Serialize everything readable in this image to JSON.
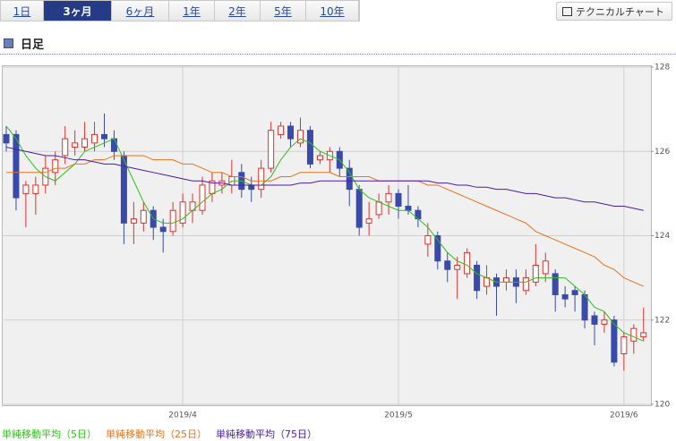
{
  "ui": {
    "tabs": [
      "1日",
      "3ヶ月",
      "6ヶ月",
      "1年",
      "2年",
      "5年",
      "10年"
    ],
    "selected_tab": 1,
    "button": "テクニカルチャート",
    "heading": "日足"
  },
  "chart_data": {
    "type": "candlestick",
    "categories": [
      null,
      null,
      null,
      null,
      null,
      null,
      null,
      null,
      null,
      null,
      null,
      null,
      null,
      null,
      null,
      null,
      null,
      null,
      "2019/4",
      null,
      null,
      null,
      null,
      null,
      null,
      null,
      null,
      null,
      null,
      null,
      null,
      null,
      null,
      null,
      null,
      null,
      null,
      null,
      null,
      null,
      "2019/5",
      null,
      null,
      null,
      null,
      null,
      null,
      null,
      null,
      null,
      null,
      null,
      null,
      null,
      null,
      null,
      null,
      null,
      null,
      null,
      null,
      null,
      null,
      "2019/6",
      null,
      null
    ],
    "open": [
      126.4,
      126.4,
      125.0,
      125.0,
      125.2,
      125.5,
      125.9,
      126.1,
      126.1,
      126.2,
      126.4,
      126.3,
      125.9,
      124.3,
      124.3,
      124.6,
      124.2,
      124.1,
      124.3,
      124.6,
      124.6,
      125.0,
      125.2,
      125.2,
      125.5,
      125.2,
      125.1,
      125.6,
      126.4,
      126.6,
      126.2,
      126.5,
      125.8,
      125.8,
      126.0,
      125.6,
      125.1,
      124.3,
      124.5,
      124.8,
      125.0,
      124.7,
      124.6,
      123.8,
      124.0,
      123.4,
      123.2,
      123.1,
      123.3,
      122.8,
      123.0,
      122.9,
      123.0,
      122.7,
      122.9,
      123.1,
      123.1,
      122.6,
      122.7,
      122.6,
      122.1,
      121.9,
      122.0,
      121.2,
      121.5,
      121.6
    ],
    "high": [
      126.6,
      126.5,
      125.3,
      125.4,
      125.9,
      126.0,
      126.6,
      126.5,
      126.7,
      126.7,
      126.9,
      126.5,
      126.0,
      124.8,
      124.8,
      124.7,
      124.4,
      124.8,
      125.0,
      125.0,
      125.4,
      125.5,
      125.5,
      125.8,
      125.7,
      125.4,
      125.8,
      126.7,
      126.7,
      126.7,
      126.8,
      126.6,
      126.0,
      126.1,
      126.1,
      125.8,
      125.2,
      124.8,
      125.0,
      125.2,
      125.1,
      125.2,
      124.7,
      124.3,
      124.1,
      123.6,
      123.5,
      123.7,
      123.4,
      123.3,
      123.1,
      123.2,
      123.2,
      123.2,
      123.8,
      123.6,
      123.2,
      122.8,
      122.8,
      122.7,
      122.2,
      122.2,
      122.1,
      121.7,
      121.9,
      122.3
    ],
    "low": [
      126.0,
      124.6,
      124.2,
      124.5,
      125.0,
      125.2,
      125.7,
      125.9,
      126.0,
      126.0,
      126.1,
      125.8,
      123.8,
      123.8,
      124.1,
      123.9,
      123.6,
      124.0,
      124.2,
      124.3,
      124.5,
      124.8,
      125.0,
      125.0,
      124.9,
      124.8,
      124.9,
      125.5,
      126.3,
      126.1,
      126.1,
      125.6,
      125.7,
      125.5,
      125.4,
      124.7,
      124.0,
      124.0,
      124.4,
      124.5,
      124.4,
      124.5,
      124.2,
      123.5,
      123.2,
      122.9,
      122.5,
      123.0,
      122.5,
      122.6,
      122.1,
      122.7,
      122.4,
      122.6,
      122.8,
      122.9,
      122.2,
      122.3,
      122.2,
      121.8,
      121.4,
      121.7,
      120.9,
      120.8,
      121.2,
      121.5
    ],
    "close": [
      126.2,
      124.9,
      125.2,
      125.2,
      125.6,
      125.8,
      126.3,
      126.2,
      126.3,
      126.4,
      126.3,
      126.0,
      124.3,
      124.4,
      124.6,
      124.2,
      124.1,
      124.6,
      124.8,
      124.8,
      125.2,
      125.3,
      125.3,
      125.4,
      125.1,
      125.1,
      125.6,
      126.5,
      126.6,
      126.3,
      126.5,
      125.7,
      125.9,
      126.0,
      125.6,
      125.1,
      124.2,
      124.4,
      124.8,
      125.0,
      124.7,
      124.6,
      124.4,
      124.0,
      123.4,
      123.2,
      123.3,
      123.6,
      122.7,
      123.0,
      122.8,
      123.0,
      122.8,
      123.0,
      123.3,
      123.4,
      122.6,
      122.5,
      122.6,
      122.0,
      121.9,
      122.0,
      121.0,
      121.6,
      121.8,
      121.7
    ],
    "up_color": "#e0302a",
    "down_color": "#3a4aa8",
    "lines": [
      {
        "name": "単純移動平均（5日）",
        "color": "#2fc01a",
        "values": [
          126.6,
          126.3,
          125.9,
          125.6,
          125.4,
          125.3,
          125.5,
          125.7,
          126.0,
          126.1,
          126.2,
          126.3,
          125.8,
          125.3,
          124.8,
          124.4,
          124.3,
          124.3,
          124.4,
          124.6,
          124.8,
          125.0,
          125.1,
          125.3,
          125.3,
          125.2,
          125.2,
          125.4,
          125.8,
          126.1,
          126.3,
          126.2,
          126.0,
          125.9,
          125.8,
          125.5,
          125.1,
          124.9,
          124.8,
          124.7,
          124.6,
          124.6,
          124.4,
          124.2,
          123.9,
          123.6,
          123.4,
          123.3,
          123.1,
          123.0,
          122.9,
          122.9,
          122.9,
          122.9,
          123.0,
          123.0,
          123.0,
          123.0,
          122.8,
          122.6,
          122.3,
          122.2,
          121.9,
          121.7,
          121.6,
          121.5
        ]
      },
      {
        "name": "単純移動平均（25日）",
        "color": "#e8731c",
        "values": [
          125.5,
          125.5,
          125.5,
          125.5,
          125.5,
          125.6,
          125.6,
          125.7,
          125.7,
          125.8,
          125.8,
          125.9,
          125.9,
          125.9,
          125.9,
          125.8,
          125.8,
          125.8,
          125.7,
          125.7,
          125.6,
          125.5,
          125.5,
          125.4,
          125.4,
          125.3,
          125.3,
          125.3,
          125.4,
          125.4,
          125.5,
          125.5,
          125.5,
          125.5,
          125.4,
          125.4,
          125.4,
          125.4,
          125.3,
          125.3,
          125.3,
          125.3,
          125.3,
          125.2,
          125.2,
          125.1,
          125.0,
          124.9,
          124.8,
          124.7,
          124.6,
          124.5,
          124.4,
          124.3,
          124.1,
          124.0,
          123.9,
          123.8,
          123.7,
          123.6,
          123.5,
          123.3,
          123.2,
          123.0,
          122.9,
          122.8
        ]
      },
      {
        "name": "単純移動平均（75日）",
        "color": "#4a1aa8",
        "values": [
          126.1,
          126.05,
          126.0,
          125.95,
          125.9,
          125.9,
          125.85,
          125.8,
          125.8,
          125.75,
          125.7,
          125.7,
          125.65,
          125.6,
          125.55,
          125.5,
          125.45,
          125.4,
          125.35,
          125.3,
          125.3,
          125.25,
          125.25,
          125.2,
          125.2,
          125.2,
          125.2,
          125.2,
          125.2,
          125.2,
          125.25,
          125.25,
          125.3,
          125.3,
          125.3,
          125.3,
          125.3,
          125.3,
          125.3,
          125.3,
          125.3,
          125.3,
          125.3,
          125.3,
          125.25,
          125.25,
          125.2,
          125.2,
          125.15,
          125.15,
          125.1,
          125.1,
          125.05,
          125.0,
          125.0,
          124.95,
          124.9,
          124.9,
          124.85,
          124.8,
          124.8,
          124.75,
          124.7,
          124.7,
          124.65,
          124.6
        ]
      }
    ],
    "ylim": [
      120,
      128
    ],
    "yticks": [
      120,
      122,
      124,
      126,
      128
    ],
    "grid": true
  }
}
